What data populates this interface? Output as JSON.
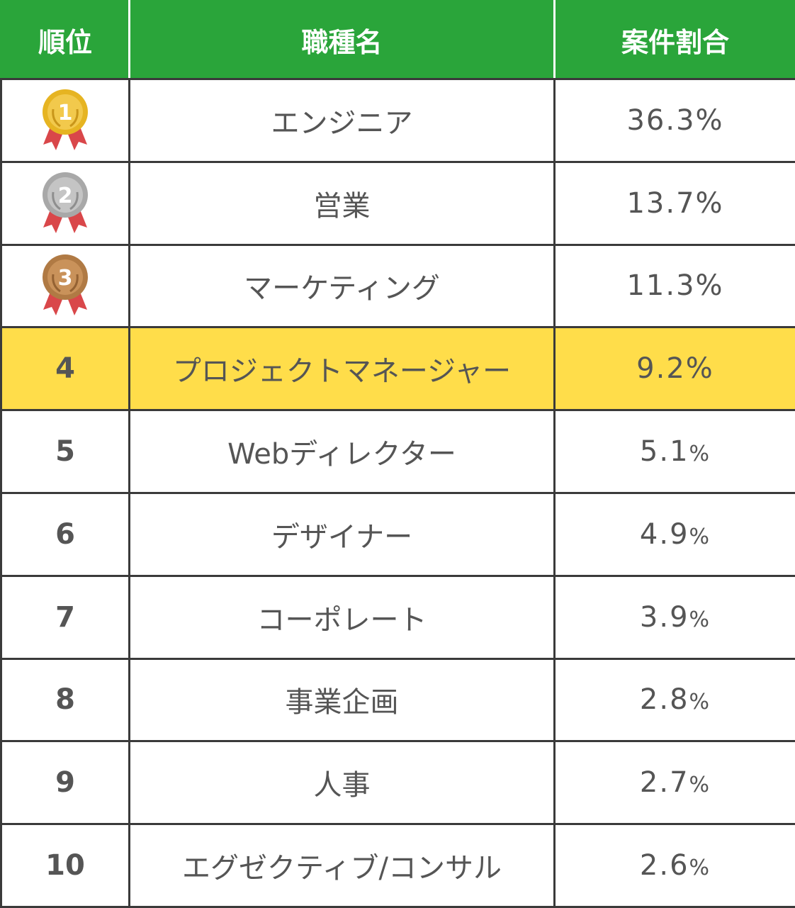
{
  "colors": {
    "header_bg": "#2aa53a",
    "highlight_bg": "#ffdd4a",
    "gold": "#e6b422",
    "silver": "#b5b5b5",
    "bronze": "#c08a52",
    "ribbon": "#d9474a"
  },
  "header": {
    "rank": "順位",
    "job": "職種名",
    "share": "案件割合"
  },
  "rows": [
    {
      "rank": "1",
      "job": "エンジニア",
      "share": "36.3",
      "unit": "%",
      "medal": "gold-medal-icon"
    },
    {
      "rank": "2",
      "job": "営業",
      "share": "13.7",
      "unit": "%",
      "medal": "silver-medal-icon"
    },
    {
      "rank": "3",
      "job": "マーケティング",
      "share": "11.3",
      "unit": "%",
      "medal": "bronze-medal-icon"
    },
    {
      "rank": "4",
      "job": "プロジェクトマネージャー",
      "share": "9.2",
      "unit": "%"
    },
    {
      "rank": "5",
      "job": "Webディレクター",
      "share": "5.1",
      "unit": "%"
    },
    {
      "rank": "6",
      "job": "デザイナー",
      "share": "4.9",
      "unit": "%"
    },
    {
      "rank": "7",
      "job": "コーポレート",
      "share": "3.9",
      "unit": "%"
    },
    {
      "rank": "8",
      "job": "事業企画",
      "share": "2.8",
      "unit": "%"
    },
    {
      "rank": "9",
      "job": "人事",
      "share": "2.7",
      "unit": "%"
    },
    {
      "rank": "10",
      "job": "エグゼクティブ/コンサル",
      "share": "2.6",
      "unit": "%"
    }
  ]
}
